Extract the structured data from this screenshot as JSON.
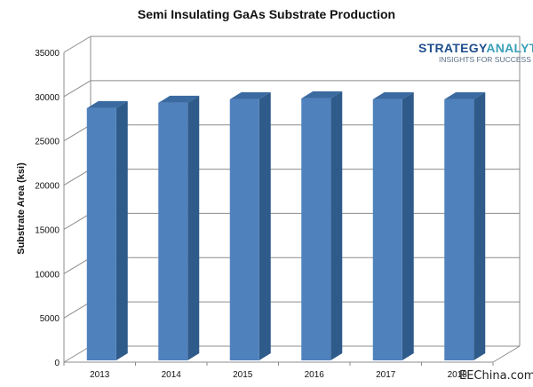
{
  "chart_data": {
    "type": "bar",
    "title": "Semi Insulating GaAs Substrate Production",
    "ylabel": "Substrate Area (ksi)",
    "xlabel": "",
    "categories": [
      "2013",
      "2014",
      "2015",
      "2016",
      "2017",
      "2018"
    ],
    "values": [
      28500,
      29100,
      29500,
      29600,
      29500,
      29500
    ],
    "ylim": [
      0,
      35000
    ],
    "yticks": [
      "0",
      "5000",
      "10000",
      "15000",
      "20000",
      "25000",
      "30000",
      "35000"
    ],
    "grid": true,
    "legend": "none",
    "bar_color": "#4f81bd",
    "bar_side_color": "#2f5b8a",
    "bar_top_color": "#3a6aa0"
  },
  "logo": {
    "strategy": "STRATEGY",
    "analytics": "ANALYTICS",
    "tagline": "INSIGHTS FOR SUCCESS",
    "strategy_color": "#1f4e8c",
    "analytics_color": "#3aa0b8"
  },
  "watermark": "EEChina.com"
}
